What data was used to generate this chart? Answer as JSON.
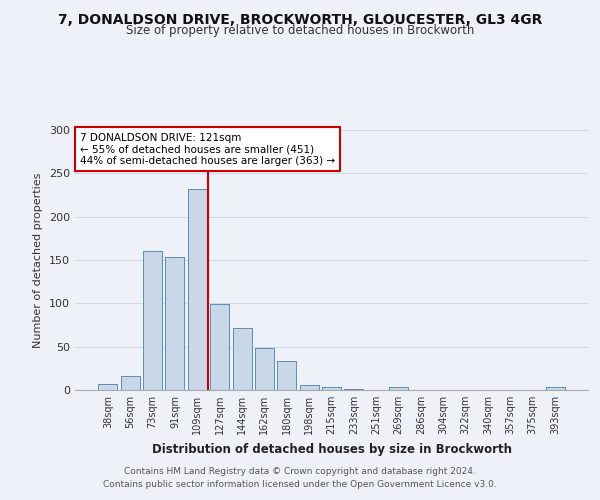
{
  "title1": "7, DONALDSON DRIVE, BROCKWORTH, GLOUCESTER, GL3 4GR",
  "title2": "Size of property relative to detached houses in Brockworth",
  "xlabel": "Distribution of detached houses by size in Brockworth",
  "ylabel": "Number of detached properties",
  "categories": [
    "38sqm",
    "56sqm",
    "73sqm",
    "91sqm",
    "109sqm",
    "127sqm",
    "144sqm",
    "162sqm",
    "180sqm",
    "198sqm",
    "215sqm",
    "233sqm",
    "251sqm",
    "269sqm",
    "286sqm",
    "304sqm",
    "322sqm",
    "340sqm",
    "357sqm",
    "375sqm",
    "393sqm"
  ],
  "values": [
    7,
    16,
    160,
    153,
    232,
    99,
    72,
    48,
    33,
    6,
    4,
    1,
    0,
    4,
    0,
    0,
    0,
    0,
    0,
    0,
    3
  ],
  "bar_color": "#c8d8e8",
  "bar_edge_color": "#5b8db8",
  "grid_color": "#d0d8e8",
  "vline_color": "#cc0000",
  "vline_pos": 4.5,
  "annotation_text": "7 DONALDSON DRIVE: 121sqm\n← 55% of detached houses are smaller (451)\n44% of semi-detached houses are larger (363) →",
  "annotation_box_color": "#ffffff",
  "annotation_box_edge": "#cc0000",
  "footer1": "Contains HM Land Registry data © Crown copyright and database right 2024.",
  "footer2": "Contains public sector information licensed under the Open Government Licence v3.0.",
  "background_color": "#eef2f8",
  "ylim": [
    0,
    300
  ],
  "yticks": [
    0,
    50,
    100,
    150,
    200,
    250,
    300
  ]
}
